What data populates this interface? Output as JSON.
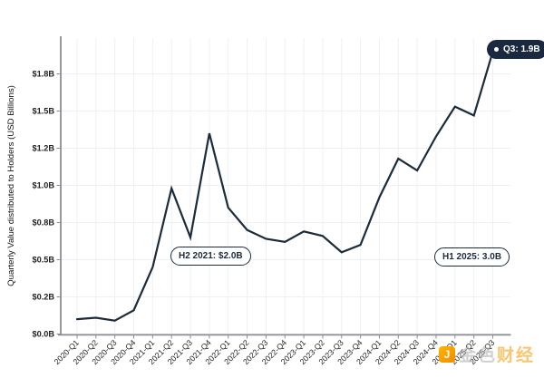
{
  "chart_data": {
    "type": "line",
    "title": "",
    "xlabel": "",
    "ylabel": "Quarterly Value distributed to Holders (USD Billions)",
    "categories": [
      "2020-Q1",
      "2020-Q2",
      "2020-Q3",
      "2020-Q4",
      "2021-Q1",
      "2021-Q2",
      "2021-Q3",
      "2021-Q4",
      "2022-Q1",
      "2022-Q2",
      "2022-Q3",
      "2022-Q4",
      "2023-Q1",
      "2023-Q2",
      "2023-Q3",
      "2023-Q4",
      "2024-Q1",
      "2024-Q2",
      "2024-Q3",
      "2024-Q4",
      "2025-Q1",
      "2025-Q2",
      "2025-Q3"
    ],
    "series": [
      {
        "name": "Quarterly value distributed to holders",
        "values": [
          0.1,
          0.11,
          0.09,
          0.16,
          0.45,
          0.98,
          0.65,
          1.35,
          0.85,
          0.7,
          0.64,
          0.62,
          0.69,
          0.66,
          0.55,
          0.6,
          0.92,
          1.18,
          1.1,
          1.33,
          1.53,
          1.47,
          1.9
        ]
      }
    ],
    "ylim": [
      0,
      2.0
    ],
    "yticks": {
      "values": [
        0,
        0.25,
        0.5,
        0.75,
        1.0,
        1.25,
        1.5,
        1.75
      ],
      "labels": [
        "$0.0B",
        "$0.2B",
        "$0.5B",
        "$0.8B",
        "$1.0B",
        "$1.2B",
        "$1.5B",
        "$1.8B"
      ]
    },
    "grid": true,
    "legend": "none",
    "annotations": {
      "mid": "H2 2021: $2.0B",
      "right": "H1 2025: 3.0B",
      "latest": "Q3: 1.9B"
    },
    "colors": {
      "line": "#1c2b3a",
      "axis": "#8b8f94",
      "grid": "#edf1f6",
      "tick_text": "#1f1f1f",
      "badge_bg": "#1b2940",
      "badge_text": "#ffffff"
    }
  },
  "watermark": {
    "text": "金色财经",
    "part1": "金色",
    "part2": "财经",
    "logo_glyph": "J",
    "logo_color": "#f7a600"
  }
}
